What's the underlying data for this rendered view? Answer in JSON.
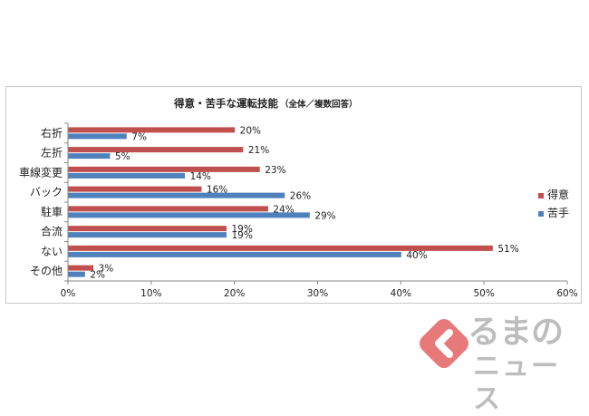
{
  "chart_data": {
    "type": "bar",
    "title": "得意・苦手な運転技能",
    "subtitle": "（全体／複数回答）",
    "categories": [
      "右折",
      "左折",
      "車線変更",
      "バック",
      "駐車",
      "合流",
      "ない",
      "その他"
    ],
    "series": [
      {
        "name": "得意",
        "color": "#c0504d",
        "values": [
          20,
          21,
          23,
          16,
          24,
          19,
          51,
          3
        ]
      },
      {
        "name": "苦手",
        "color": "#4f81bd",
        "values": [
          7,
          5,
          14,
          26,
          29,
          19,
          40,
          2
        ]
      }
    ],
    "xlim": [
      0,
      60
    ],
    "xticks": [
      0,
      10,
      20,
      30,
      40,
      50,
      60
    ],
    "tick_suffix": "%",
    "value_suffix": "%",
    "legend_position": "right",
    "orientation": "horizontal"
  },
  "logo": {
    "text_top": "るまの",
    "text_bottom": "ニュース",
    "color": "#e8797a"
  }
}
